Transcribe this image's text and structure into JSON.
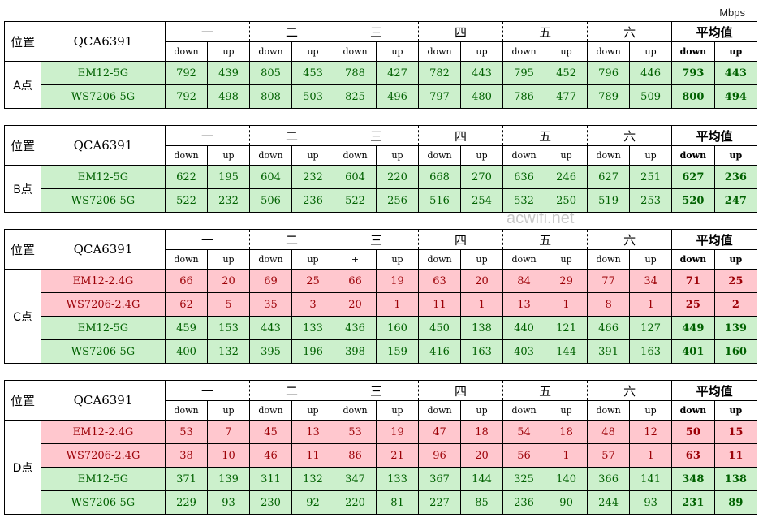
{
  "unit": "Mbps",
  "watermark": "acwifi.net",
  "tables": [
    {
      "position_header": "位置",
      "model": "QCA6391",
      "location": "A点",
      "groups": [
        "一",
        "二",
        "三",
        "四",
        "五",
        "六",
        "平均值"
      ],
      "subheaders": [
        "down",
        "up",
        "down",
        "up",
        "down",
        "up",
        "down",
        "up",
        "down",
        "up",
        "down",
        "up",
        "down",
        "up"
      ],
      "rows": [
        {
          "name": "EM12-5G",
          "bg": "#ccf0cc",
          "fg": "#006100",
          "values": [
            792,
            439,
            805,
            453,
            788,
            427,
            782,
            443,
            795,
            452,
            796,
            446,
            793,
            443
          ]
        },
        {
          "name": "WS7206-5G",
          "bg": "#ccf0cc",
          "fg": "#006100",
          "values": [
            792,
            498,
            808,
            503,
            825,
            496,
            797,
            480,
            786,
            477,
            789,
            509,
            800,
            494
          ]
        }
      ]
    },
    {
      "position_header": "位置",
      "model": "QCA6391",
      "location": "B点",
      "groups": [
        "一",
        "二",
        "三",
        "四",
        "五",
        "六",
        "平均值"
      ],
      "subheaders": [
        "down",
        "up",
        "down",
        "up",
        "down",
        "up",
        "down",
        "up",
        "down",
        "up",
        "down",
        "up",
        "down",
        "up"
      ],
      "rows": [
        {
          "name": "EM12-5G",
          "bg": "#ccf0cc",
          "fg": "#006100",
          "values": [
            622,
            195,
            604,
            232,
            604,
            220,
            668,
            270,
            636,
            246,
            627,
            251,
            627,
            236
          ]
        },
        {
          "name": "WS7206-5G",
          "bg": "#ccf0cc",
          "fg": "#006100",
          "values": [
            522,
            232,
            506,
            236,
            522,
            256,
            516,
            254,
            532,
            250,
            519,
            253,
            520,
            247
          ]
        }
      ]
    },
    {
      "position_header": "位置",
      "model": "QCA6391",
      "location": "C点",
      "groups": [
        "一",
        "二",
        "三",
        "四",
        "五",
        "六",
        "平均值"
      ],
      "subheaders": [
        "down",
        "up",
        "down",
        "up",
        "+",
        "up",
        "down",
        "up",
        "down",
        "up",
        "down",
        "up",
        "down",
        "up"
      ],
      "rows": [
        {
          "name": "EM12-2.4G",
          "bg": "#ffc7ce",
          "fg": "#9c0006",
          "values": [
            66,
            20,
            69,
            25,
            66,
            19,
            63,
            20,
            84,
            29,
            77,
            34,
            71,
            25
          ]
        },
        {
          "name": "WS7206-2.4G",
          "bg": "#ffc7ce",
          "fg": "#9c0006",
          "values": [
            62,
            5,
            35,
            3,
            20,
            1,
            11,
            1,
            13,
            1,
            8,
            1,
            25,
            2
          ]
        },
        {
          "name": "EM12-5G",
          "bg": "#ccf0cc",
          "fg": "#006100",
          "values": [
            459,
            153,
            443,
            133,
            436,
            160,
            450,
            138,
            440,
            121,
            466,
            127,
            449,
            139
          ]
        },
        {
          "name": "WS7206-5G",
          "bg": "#ccf0cc",
          "fg": "#006100",
          "values": [
            400,
            132,
            395,
            196,
            398,
            159,
            416,
            163,
            403,
            144,
            391,
            163,
            401,
            160
          ]
        }
      ]
    },
    {
      "position_header": "位置",
      "model": "QCA6391",
      "location": "D点",
      "groups": [
        "一",
        "二",
        "三",
        "四",
        "五",
        "六",
        "平均值"
      ],
      "subheaders": [
        "down",
        "up",
        "down",
        "up",
        "down",
        "up",
        "down",
        "up",
        "down",
        "up",
        "down",
        "up",
        "down",
        "up"
      ],
      "rows": [
        {
          "name": "EM12-2.4G",
          "bg": "#ffc7ce",
          "fg": "#9c0006",
          "values": [
            53,
            7,
            45,
            13,
            53,
            19,
            47,
            18,
            54,
            18,
            48,
            12,
            50,
            15
          ]
        },
        {
          "name": "WS7206-2.4G",
          "bg": "#ffc7ce",
          "fg": "#9c0006",
          "values": [
            38,
            10,
            46,
            11,
            86,
            21,
            96,
            20,
            56,
            1,
            57,
            1,
            63,
            11
          ]
        },
        {
          "name": "EM12-5G",
          "bg": "#ccf0cc",
          "fg": "#006100",
          "values": [
            371,
            139,
            311,
            132,
            347,
            133,
            367,
            144,
            325,
            140,
            366,
            141,
            348,
            138
          ]
        },
        {
          "name": "WS7206-5G",
          "bg": "#ccf0cc",
          "fg": "#006100",
          "values": [
            229,
            93,
            230,
            92,
            220,
            81,
            227,
            85,
            236,
            90,
            244,
            93,
            231,
            89
          ]
        }
      ]
    }
  ]
}
